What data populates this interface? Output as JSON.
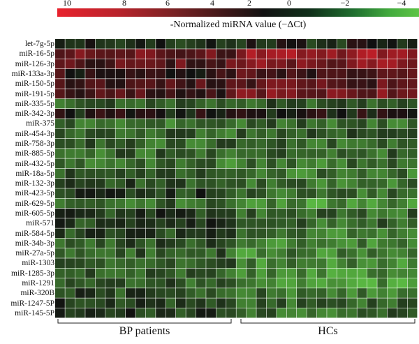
{
  "chart_data": {
    "type": "heatmap",
    "legend_title": "-Normalized miRNA value (−ΔCt)",
    "legend_ticks": [
      "10",
      "8",
      "6",
      "4",
      "2",
      "0",
      "−2",
      "−4"
    ],
    "color_scale": {
      "high": "#e8222d",
      "mid": "#101010",
      "low": "#5fc446",
      "range": [
        10,
        -4.5
      ]
    },
    "rows": [
      "let-7g-5p",
      "miR-16-5p",
      "miR-126-3p",
      "miR-133a-3p",
      "miR-150-5p",
      "miR-191-5p",
      "miR-335-5p",
      "miR-342-3p",
      "miR-375",
      "miR-454-3p",
      "miR-758-3p",
      "miR-885-5p",
      "miR-432-5p",
      "miR-18a-5p",
      "miR-132-3p",
      "miR-423-5p",
      "miR-629-5p",
      "miR-605-5p",
      "miR-571",
      "miR-584-5p",
      "miR-34b-3p",
      "miR-27a-5p",
      "miR-1303",
      "miR-1285-3p",
      "miR-1291",
      "miR-320B",
      "miR-1247-5P",
      "miR-145-5P"
    ],
    "groups": [
      {
        "label": "BP patients",
        "columns": 18
      },
      {
        "label": "HCs",
        "columns": 18
      }
    ],
    "row_means": {
      "BP patients": [
        1.0,
        5.0,
        4.5,
        3.0,
        4.0,
        4.0,
        -1.0,
        2.0,
        -1.5,
        -1.0,
        -1.0,
        -1.0,
        -1.5,
        -0.5,
        0.0,
        0.5,
        -1.0,
        0.5,
        0.5,
        0.0,
        -0.5,
        -0.5,
        -0.5,
        -0.5,
        -0.5,
        0.0,
        0.5,
        0.5
      ],
      "HCs": [
        1.5,
        7.0,
        6.0,
        4.0,
        4.5,
        5.5,
        -0.5,
        2.0,
        -1.0,
        -0.5,
        -1.0,
        -1.0,
        -1.5,
        -1.5,
        -1.5,
        -1.0,
        -2.5,
        -1.0,
        -1.0,
        -1.5,
        -2.0,
        -2.0,
        -2.0,
        -2.5,
        -2.5,
        -1.5,
        -1.0,
        -1.0
      ]
    }
  }
}
